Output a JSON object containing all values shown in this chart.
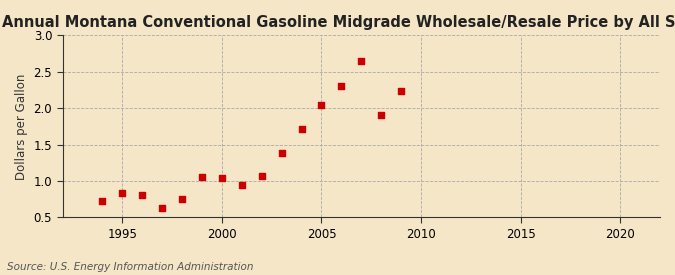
{
  "title": "Annual Montana Conventional Gasoline Midgrade Wholesale/Resale Price by All Sellers",
  "ylabel": "Dollars per Gallon",
  "source": "Source: U.S. Energy Information Administration",
  "background_color": "#f5e6c8",
  "marker_color": "#cc0000",
  "years": [
    1994,
    1995,
    1996,
    1997,
    1998,
    1999,
    2000,
    2001,
    2002,
    2003,
    2004,
    2005,
    2006,
    2007,
    2008,
    2009
  ],
  "values": [
    0.72,
    0.84,
    0.8,
    0.63,
    0.75,
    1.05,
    1.04,
    0.95,
    1.07,
    1.38,
    1.71,
    2.04,
    2.3,
    2.65,
    1.9,
    2.23
  ],
  "ylim": [
    0.5,
    3.0
  ],
  "xlim": [
    1992,
    2022
  ],
  "yticks": [
    0.5,
    1.0,
    1.5,
    2.0,
    2.5,
    3.0
  ],
  "xticks": [
    1995,
    2000,
    2005,
    2010,
    2015,
    2020
  ],
  "title_fontsize": 10.5,
  "label_fontsize": 8.5,
  "tick_fontsize": 8.5,
  "source_fontsize": 7.5
}
